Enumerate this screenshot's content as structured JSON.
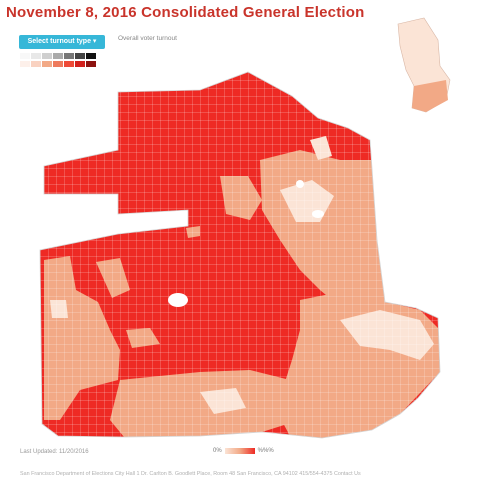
{
  "header": {
    "title": "November 8, 2016 Consolidated General Election",
    "turnout_button_label": "Select turnout type ▾",
    "subtitle": "Overall voter turnout"
  },
  "legend": {
    "low_label": "0%",
    "high_label": "%%%"
  },
  "status": {
    "last_updated": "Last Updated: 11/20/2016"
  },
  "footer": {
    "text": "San Francisco Department of Elections City Hall 1 Dr. Carlton B. Goodlett Place, Room 48 San Francisco, CA 94102 415/554-4375 Contact Us"
  },
  "colors": {
    "title": "#c9342b",
    "button": "#36b7d8",
    "high_turnout": "#ee2a24",
    "mid_turnout": "#f2a986",
    "low_turnout": "#fbe4d6"
  },
  "icons": {
    "dropdown": "chevron-down-icon"
  }
}
